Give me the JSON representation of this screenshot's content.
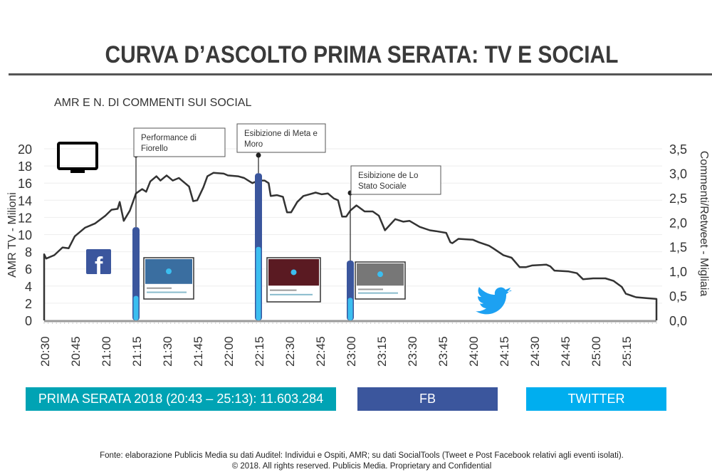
{
  "title": "CURVA D’ASCOLTO PRIMA SERATA: TV E SOCIAL",
  "subtitle": "AMR E N. DI COMMENTI SUI SOCIAL",
  "legend": [
    {
      "label": "PRIMA SERATA 2018 (20:43 – 25:13): 11.603.284",
      "color": "#00a3b4"
    },
    {
      "label": "FB",
      "color": "#3b569d"
    },
    {
      "label": "TWITTER",
      "color": "#00aeef"
    }
  ],
  "footer": {
    "line1": "Fonte: elaborazione Publicis Media su dati Auditel: Individui e Ospiti, AMR; su dati SocialTools (Tweet e Post Facebook relativi agli eventi isolati).",
    "line2": "© 2018. All rights reserved. Publicis Media. Proprietary and Confidential"
  },
  "icons": [
    "tv-icon",
    "facebook-icon",
    "twitter-icon"
  ],
  "chart_data": {
    "type": "line",
    "ylabel": "AMR TV - Milioni",
    "y2label": "Commenti/Retweet - Migliaia",
    "ylim": [
      0,
      20
    ],
    "y2lim": [
      0,
      3.5
    ],
    "yticks": [
      "0",
      "2",
      "4",
      "6",
      "8",
      "10",
      "12",
      "14",
      "16",
      "18",
      "20"
    ],
    "y2ticks": [
      "0,0",
      "0,5",
      "1,0",
      "1,5",
      "2,0",
      "2,5",
      "3,0",
      "3,5"
    ],
    "xticks": [
      "20:30",
      "20:45",
      "21:00",
      "21:15",
      "21:30",
      "21:45",
      "22:00",
      "22:15",
      "22:30",
      "22:45",
      "23:00",
      "23:15",
      "23:30",
      "23:45",
      "24:00",
      "24:15",
      "24:30",
      "24:45",
      "25:00",
      "25:15"
    ],
    "xlim": [
      "20:30",
      "25:30"
    ],
    "grid": true,
    "amr_series": {
      "x": [
        "20:30",
        "20:31",
        "20:35",
        "20:39",
        "20:42",
        "20:45",
        "20:50",
        "20:55",
        "21:00",
        "21:03",
        "21:06",
        "21:07",
        "21:09",
        "21:12",
        "21:15",
        "21:18",
        "21:20",
        "21:22",
        "21:25",
        "21:27",
        "21:30",
        "21:33",
        "21:36",
        "21:39",
        "21:41",
        "21:43",
        "21:45",
        "21:48",
        "21:50",
        "21:53",
        "21:58",
        "22:00",
        "22:05",
        "22:08",
        "22:12",
        "22:15",
        "22:18",
        "22:20",
        "22:21",
        "22:24",
        "22:27",
        "22:29",
        "22:31",
        "22:34",
        "22:37",
        "22:40",
        "22:43",
        "22:46",
        "22:49",
        "22:52",
        "22:54",
        "22:56",
        "22:58",
        "23:00",
        "23:03",
        "23:07",
        "23:11",
        "23:14",
        "23:17",
        "23:22",
        "23:26",
        "23:29",
        "23:34",
        "23:39",
        "23:42",
        "23:47",
        "23:49",
        "23:50",
        "23:53",
        "24:00",
        "24:03",
        "24:08",
        "24:10",
        "24:15",
        "24:19",
        "24:23",
        "24:26",
        "24:29",
        "24:36",
        "24:38",
        "24:40",
        "24:47",
        "24:51",
        "24:54",
        "24:59",
        "25:05",
        "25:09",
        "25:13",
        "25:15",
        "25:20",
        "25:25",
        "25:30"
      ],
      "values": [
        7.7,
        7.2,
        7.6,
        8.5,
        8.4,
        9.8,
        10.8,
        11.3,
        12.2,
        12.9,
        13.0,
        13.8,
        11.6,
        12.8,
        14.8,
        15.3,
        15.0,
        16.2,
        16.8,
        16.3,
        16.9,
        16.3,
        16.6,
        16.0,
        15.6,
        13.9,
        14.0,
        15.5,
        16.8,
        17.2,
        17.1,
        16.9,
        16.8,
        16.6,
        16.0,
        16.3,
        16.3,
        16.0,
        14.5,
        14.6,
        14.4,
        12.6,
        12.6,
        13.8,
        14.5,
        14.7,
        14.9,
        14.7,
        14.8,
        14.2,
        14.0,
        12.1,
        12.1,
        12.8,
        13.4,
        12.7,
        12.7,
        12.2,
        10.5,
        11.8,
        11.5,
        11.6,
        10.9,
        10.5,
        10.4,
        10.2,
        9.1,
        9.0,
        9.5,
        9.4,
        9.1,
        8.7,
        8.4,
        7.6,
        7.3,
        6.2,
        6.2,
        6.4,
        6.5,
        6.3,
        5.8,
        5.7,
        5.5,
        4.8,
        4.9,
        4.9,
        4.6,
        3.9,
        3.1,
        2.7,
        2.6,
        2.5
      ]
    },
    "social_bars": [
      {
        "time": "21:15",
        "fb": 1.9,
        "twitter": 0.5,
        "annotation": "Performance di Fiorello"
      },
      {
        "time": "22:15",
        "fb": 3.0,
        "twitter": 1.5,
        "annotation": "Esibizione di Meta e Moro"
      },
      {
        "time": "23:00",
        "fb": 1.22,
        "twitter": 0.46,
        "annotation": "Esibizione de Lo Stato Sociale"
      }
    ],
    "colors": {
      "line": "#333333",
      "fb": "#3b569d",
      "twitter": "#3bbef0",
      "grid": "#eeeeee"
    }
  }
}
